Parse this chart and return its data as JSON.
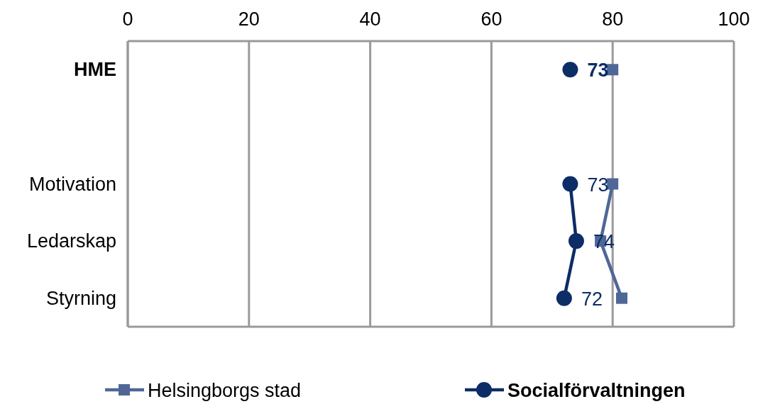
{
  "chart_data": {
    "type": "line",
    "orientation": "horizontal",
    "categories": [
      "HME",
      null,
      "Motivation",
      "Ledarskap",
      "Styrning"
    ],
    "series": [
      {
        "name": "Helsingborgs stad",
        "color": "#4f6797",
        "marker": "square",
        "values": [
          80,
          null,
          80,
          78,
          81.5
        ]
      },
      {
        "name": "Socialförvaltningen",
        "color": "#0d2d66",
        "marker": "circle",
        "values": [
          73,
          null,
          73,
          74,
          72
        ],
        "value_labels": [
          "73",
          null,
          "73",
          "74",
          "72"
        ]
      }
    ],
    "xlim": [
      0,
      100
    ],
    "xticks": [
      0,
      20,
      40,
      60,
      80,
      100
    ],
    "grid": "x",
    "legend": "bottom"
  }
}
